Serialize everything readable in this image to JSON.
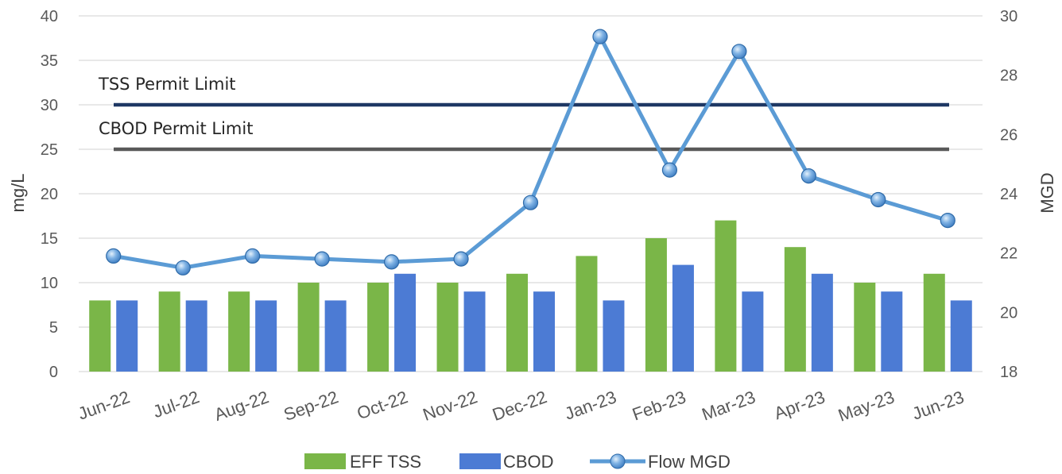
{
  "chart_data": {
    "type": "bar",
    "categories": [
      "Jun-22",
      "Jul-22",
      "Aug-22",
      "Sep-22",
      "Oct-22",
      "Nov-22",
      "Dec-22",
      "Jan-23",
      "Feb-23",
      "Mar-23",
      "Apr-23",
      "May-23",
      "Jun-23"
    ],
    "series": [
      {
        "name": "EFF TSS",
        "type": "bar",
        "axis": "left",
        "color": "#7AB648",
        "values": [
          8,
          9,
          9,
          10,
          10,
          10,
          11,
          13,
          15,
          17,
          14,
          10,
          11
        ]
      },
      {
        "name": "CBOD",
        "type": "bar",
        "axis": "left",
        "color": "#4C7BD4",
        "values": [
          8,
          8,
          8,
          8,
          11,
          9,
          9,
          8,
          12,
          9,
          11,
          9,
          8
        ]
      },
      {
        "name": "Flow MGD",
        "type": "line",
        "axis": "right",
        "color": "#5B9BD5",
        "values": [
          21.9,
          21.5,
          21.9,
          21.8,
          21.7,
          21.8,
          23.7,
          29.3,
          24.8,
          28.8,
          24.6,
          23.8,
          23.1
        ]
      }
    ],
    "reference_lines": [
      {
        "label": "TSS Permit Limit",
        "value": 30,
        "axis": "left",
        "color": "#1F3864"
      },
      {
        "label": "CBOD Permit Limit",
        "value": 25,
        "axis": "left",
        "color": "#595959"
      }
    ],
    "ylabel": "mg/L",
    "y2label": "MGD",
    "ylim": [
      0,
      40
    ],
    "yticks": [
      0,
      5,
      10,
      15,
      20,
      25,
      30,
      35,
      40
    ],
    "y2lim": [
      18,
      30
    ],
    "y2ticks": [
      18,
      20,
      22,
      24,
      26,
      28,
      30
    ],
    "grid": true,
    "legend": "bottom"
  }
}
